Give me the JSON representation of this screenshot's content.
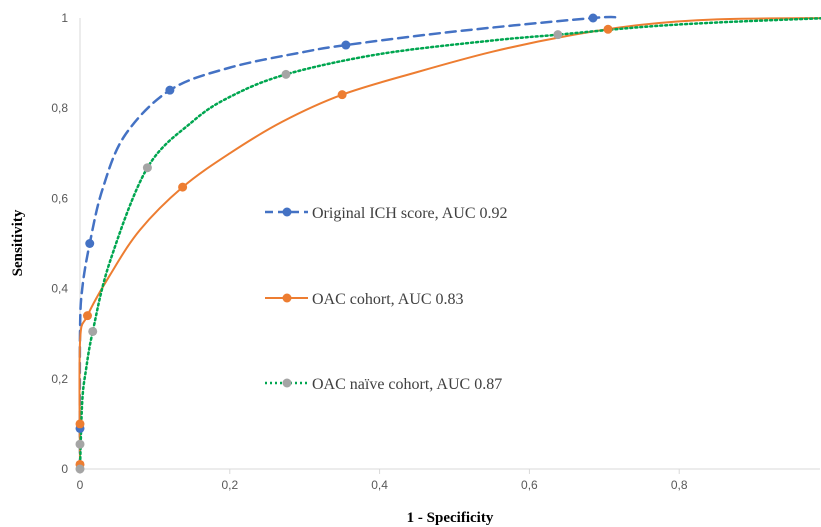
{
  "chart_data": {
    "type": "line",
    "xlabel": "1 - Specificity",
    "ylabel": "Sensitivity",
    "xlim": [
      0,
      1
    ],
    "ylim": [
      0,
      1
    ],
    "x_ticks": [
      "0",
      "0,2",
      "0,4",
      "0,6",
      "0,8"
    ],
    "x_tick_values": [
      0,
      0.2,
      0.4,
      0.6,
      0.8
    ],
    "y_ticks": [
      "0",
      "0,2",
      "0,4",
      "0,6",
      "0,8",
      "1"
    ],
    "y_tick_values": [
      0,
      0.2,
      0.4,
      0.6,
      0.8,
      1
    ],
    "grid": false,
    "legend_placement": "center",
    "series": [
      {
        "name": "Original ICH score, AUC 0.92",
        "color": "#4472c4",
        "line_style": "dashed",
        "points": [
          [
            0,
            0.09
          ],
          [
            0.013,
            0.5
          ],
          [
            0.12,
            0.84
          ],
          [
            0.355,
            0.94
          ],
          [
            0.685,
            1.0
          ]
        ],
        "curve": [
          [
            0,
            0
          ],
          [
            0,
            0.3
          ],
          [
            0.003,
            0.4
          ],
          [
            0.013,
            0.5
          ],
          [
            0.03,
            0.62
          ],
          [
            0.06,
            0.74
          ],
          [
            0.12,
            0.84
          ],
          [
            0.2,
            0.89
          ],
          [
            0.3,
            0.925
          ],
          [
            0.355,
            0.94
          ],
          [
            0.5,
            0.97
          ],
          [
            0.685,
            1.0
          ],
          [
            0.72,
            1.0
          ]
        ]
      },
      {
        "name": "OAC cohort, AUC 0.83",
        "color": "#ed7d31",
        "line_style": "solid",
        "points": [
          [
            0,
            0.01
          ],
          [
            0,
            0.1
          ],
          [
            0.01,
            0.34
          ],
          [
            0.137,
            0.625
          ],
          [
            0.35,
            0.83
          ],
          [
            0.705,
            0.975
          ]
        ],
        "curve": [
          [
            0,
            0
          ],
          [
            0,
            0.28
          ],
          [
            0.01,
            0.34
          ],
          [
            0.04,
            0.43
          ],
          [
            0.08,
            0.53
          ],
          [
            0.137,
            0.625
          ],
          [
            0.2,
            0.7
          ],
          [
            0.27,
            0.77
          ],
          [
            0.35,
            0.83
          ],
          [
            0.45,
            0.88
          ],
          [
            0.55,
            0.925
          ],
          [
            0.65,
            0.96
          ],
          [
            0.75,
            0.985
          ],
          [
            0.85,
            0.997
          ],
          [
            1.0,
            1.0
          ]
        ]
      },
      {
        "name": "OAC naïve cohort, AUC 0.87",
        "color": "#00a650",
        "line_style": "dotted",
        "points": [
          [
            0,
            0.0
          ],
          [
            0,
            0.055
          ],
          [
            0.017,
            0.305
          ],
          [
            0.09,
            0.668
          ],
          [
            0.275,
            0.875
          ],
          [
            0.638,
            0.963
          ]
        ],
        "curve": [
          [
            0,
            0
          ],
          [
            0.003,
            0.15
          ],
          [
            0.008,
            0.22
          ],
          [
            0.017,
            0.305
          ],
          [
            0.04,
            0.46
          ],
          [
            0.09,
            0.668
          ],
          [
            0.15,
            0.77
          ],
          [
            0.2,
            0.825
          ],
          [
            0.275,
            0.875
          ],
          [
            0.4,
            0.92
          ],
          [
            0.55,
            0.95
          ],
          [
            0.638,
            0.963
          ],
          [
            0.75,
            0.98
          ],
          [
            0.85,
            0.99
          ],
          [
            1.0,
            1.0
          ]
        ]
      }
    ],
    "marker_color": "#a5a5a5"
  }
}
